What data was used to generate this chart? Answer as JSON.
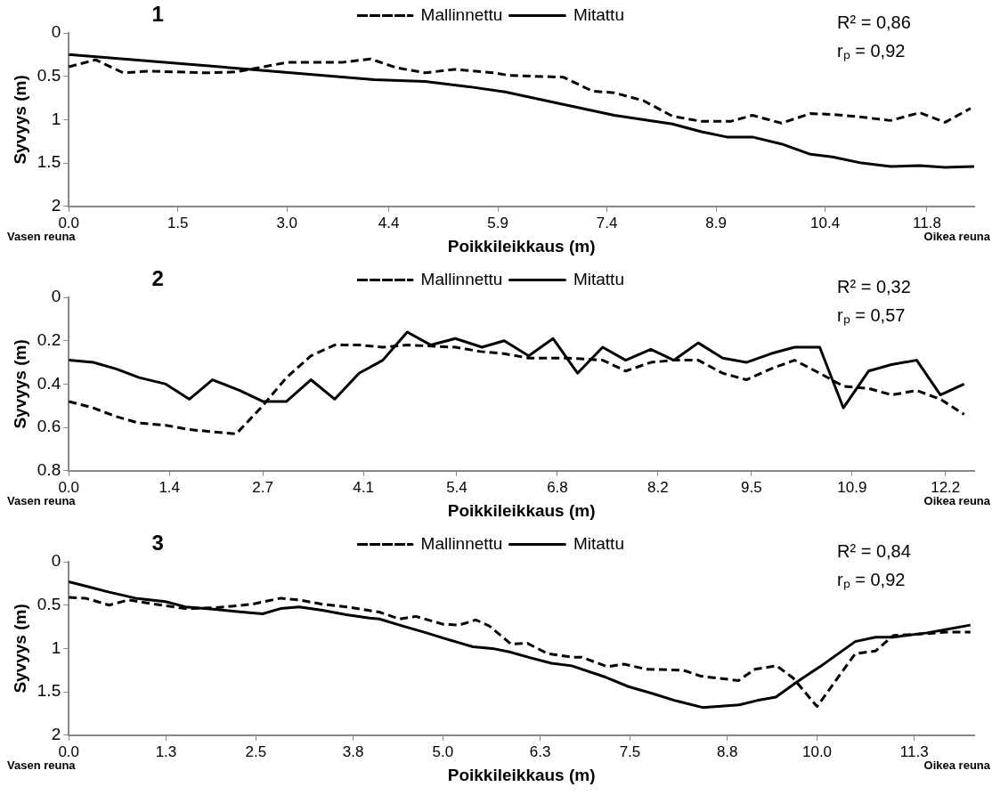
{
  "chart_data": [
    {
      "type": "line",
      "title": "1",
      "xlabel": "Poikkileikkaus (m)",
      "ylabel": "Syvyys (m)",
      "xlim": [
        0,
        12.45
      ],
      "xticks": [
        {
          "value": 0,
          "label": "0.0"
        },
        1.5,
        {
          "value": 3,
          "label": "3.0"
        },
        4.4,
        5.9,
        7.4,
        8.9,
        10.4,
        11.8
      ],
      "ylim": [
        2,
        0
      ],
      "yticks": [
        0,
        0.5,
        1,
        1.5,
        2
      ],
      "grid": false,
      "legend": "top",
      "marker": "none",
      "annotations": [
        "Vasen reuna",
        "Oikea reuna",
        "R² = 0,86",
        "rₚ = 0,92"
      ],
      "series": [
        {
          "name": "Mallinnettu",
          "color": "#000000",
          "line_style": "dashed",
          "x": [
            0,
            0.37,
            0.75,
            1.1,
            1.9,
            2.3,
            3.0,
            3.75,
            4.15,
            4.5,
            4.9,
            5.3,
            5.85,
            6.05,
            6.8,
            7.2,
            7.5,
            7.9,
            8.3,
            8.7,
            9.1,
            9.4,
            9.8,
            10.2,
            10.5,
            10.9,
            11.3,
            11.7,
            12.05,
            12.4
          ],
          "values": [
            0.39,
            0.31,
            0.46,
            0.44,
            0.46,
            0.45,
            0.34,
            0.34,
            0.3,
            0.4,
            0.46,
            0.42,
            0.46,
            0.49,
            0.51,
            0.67,
            0.69,
            0.78,
            0.96,
            1.02,
            1.02,
            0.95,
            1.04,
            0.93,
            0.94,
            0.97,
            1.01,
            0.92,
            1.03,
            0.87
          ]
        },
        {
          "name": "Mitattu",
          "color": "#000000",
          "line_style": "solid",
          "x": [
            0,
            2.5,
            4.2,
            4.9,
            5.5,
            6.0,
            7.5,
            8.3,
            8.7,
            9.05,
            9.4,
            9.8,
            10.2,
            10.5,
            10.9,
            11.3,
            11.7,
            12.05,
            12.45
          ],
          "values": [
            0.25,
            0.42,
            0.54,
            0.56,
            0.62,
            0.68,
            0.95,
            1.05,
            1.14,
            1.2,
            1.2,
            1.28,
            1.4,
            1.43,
            1.5,
            1.54,
            1.53,
            1.55,
            1.54
          ]
        }
      ]
    },
    {
      "type": "line",
      "title": "2",
      "xlabel": "Poikkileikkaus (m)",
      "ylabel": "Syvyys (m)",
      "xlim": [
        0,
        12.6
      ],
      "xticks": [
        {
          "value": 0,
          "label": "0.0"
        },
        1.4,
        2.7,
        4.1,
        5.4,
        6.8,
        8.2,
        9.5,
        10.9,
        12.2
      ],
      "ylim": [
        0.8,
        0
      ],
      "yticks": [
        0,
        0.2,
        0.4,
        0.6,
        0.8
      ],
      "grid": false,
      "legend": "top",
      "marker": "none",
      "annotations": [
        "Vasen reuna",
        "Oikea reuna",
        "R² = 0,32",
        "rₚ = 0,57"
      ],
      "series": [
        {
          "name": "Mallinnettu",
          "color": "#000000",
          "line_style": "dashed",
          "x": [
            0,
            0.34,
            0.66,
            0.98,
            1.35,
            1.68,
            2.0,
            2.33,
            2.7,
            3.03,
            3.37,
            3.7,
            4.04,
            4.37,
            4.71,
            5.38,
            5.73,
            6.06,
            6.4,
            6.96,
            7.43,
            7.75,
            8.1,
            8.42,
            8.76,
            9.1,
            9.43,
            9.77,
            10.1,
            10.45,
            10.78,
            11.13,
            11.45,
            11.8,
            12.13,
            12.46
          ],
          "values": [
            0.48,
            0.51,
            0.55,
            0.58,
            0.59,
            0.61,
            0.62,
            0.63,
            0.5,
            0.37,
            0.27,
            0.22,
            0.22,
            0.23,
            0.22,
            0.23,
            0.25,
            0.26,
            0.28,
            0.28,
            0.29,
            0.34,
            0.3,
            0.29,
            0.29,
            0.35,
            0.38,
            0.33,
            0.29,
            0.35,
            0.41,
            0.42,
            0.45,
            0.43,
            0.47,
            0.54
          ]
        },
        {
          "name": "Mitattu",
          "color": "#000000",
          "line_style": "solid",
          "x": [
            0,
            0.34,
            0.66,
            0.98,
            1.35,
            1.68,
            2.0,
            2.38,
            2.7,
            3.03,
            3.37,
            3.7,
            4.04,
            4.37,
            4.71,
            5.04,
            5.38,
            5.75,
            6.06,
            6.4,
            6.74,
            7.08,
            7.43,
            7.75,
            8.1,
            8.42,
            8.76,
            9.1,
            9.43,
            9.77,
            10.1,
            10.45,
            10.78,
            11.13,
            11.45,
            11.8,
            12.13,
            12.46
          ],
          "values": [
            0.29,
            0.3,
            0.33,
            0.37,
            0.4,
            0.47,
            0.38,
            0.43,
            0.48,
            0.48,
            0.38,
            0.47,
            0.35,
            0.29,
            0.16,
            0.22,
            0.19,
            0.23,
            0.2,
            0.27,
            0.19,
            0.35,
            0.23,
            0.29,
            0.24,
            0.29,
            0.21,
            0.28,
            0.3,
            0.26,
            0.23,
            0.23,
            0.51,
            0.34,
            0.31,
            0.29,
            0.45,
            0.4
          ]
        }
      ]
    },
    {
      "type": "line",
      "title": "3",
      "xlabel": "Poikkileikkaus (m)",
      "ylabel": "Syvyys (m)",
      "xlim": [
        0,
        12.1
      ],
      "xticks": [
        {
          "value": 0,
          "label": "0.0"
        },
        1.3,
        2.5,
        3.8,
        {
          "value": 5,
          "label": "5.0"
        },
        6.3,
        7.5,
        8.8,
        {
          "value": 10,
          "label": "10.0"
        },
        11.3
      ],
      "ylim": [
        2,
        0
      ],
      "yticks": [
        0,
        0.5,
        1,
        1.5,
        2
      ],
      "grid": false,
      "legend": "top",
      "marker": "none",
      "annotations": [
        "Vasen reuna",
        "Oikea reuna",
        "R² = 0,84",
        "rₚ = 0,92"
      ],
      "series": [
        {
          "name": "Mallinnettu",
          "color": "#000000",
          "line_style": "dashed",
          "x": [
            0,
            0.22,
            0.54,
            0.8,
            1.16,
            1.56,
            1.96,
            2.45,
            2.83,
            3.08,
            3.39,
            3.71,
            4.15,
            4.42,
            4.64,
            5.0,
            5.22,
            5.44,
            5.62,
            5.91,
            6.13,
            6.4,
            6.72,
            6.85,
            7.2,
            7.42,
            7.72,
            8.21,
            8.45,
            8.95,
            9.17,
            9.46,
            9.68,
            10.0,
            10.51,
            10.78,
            11.02,
            11.47,
            11.73,
            12.05
          ],
          "values": [
            0.41,
            0.42,
            0.5,
            0.44,
            0.49,
            0.54,
            0.53,
            0.49,
            0.42,
            0.44,
            0.49,
            0.52,
            0.58,
            0.66,
            0.63,
            0.72,
            0.73,
            0.67,
            0.74,
            0.95,
            0.94,
            1.06,
            1.1,
            1.1,
            1.21,
            1.18,
            1.24,
            1.25,
            1.32,
            1.37,
            1.24,
            1.2,
            1.34,
            1.67,
            1.06,
            1.03,
            0.85,
            0.83,
            0.81,
            0.81
          ]
        },
        {
          "name": "Mitattu",
          "color": "#000000",
          "line_style": "solid",
          "x": [
            0,
            0.27,
            0.54,
            0.89,
            1.29,
            1.56,
            1.96,
            2.32,
            2.59,
            2.83,
            3.08,
            3.39,
            3.71,
            4.02,
            4.15,
            4.42,
            4.78,
            5.04,
            5.4,
            5.66,
            5.89,
            6.18,
            6.45,
            6.72,
            7.17,
            7.48,
            7.8,
            8.1,
            8.47,
            8.96,
            9.2,
            9.45,
            9.74,
            10.04,
            10.51,
            10.78,
            11.02,
            11.47,
            11.73,
            12.05
          ],
          "values": [
            0.23,
            0.29,
            0.35,
            0.42,
            0.46,
            0.52,
            0.55,
            0.58,
            0.6,
            0.54,
            0.52,
            0.56,
            0.61,
            0.65,
            0.66,
            0.73,
            0.82,
            0.89,
            0.98,
            1.0,
            1.04,
            1.11,
            1.17,
            1.2,
            1.33,
            1.44,
            1.52,
            1.6,
            1.68,
            1.65,
            1.6,
            1.56,
            1.38,
            1.21,
            0.92,
            0.87,
            0.87,
            0.82,
            0.78,
            0.73
          ]
        }
      ]
    }
  ]
}
